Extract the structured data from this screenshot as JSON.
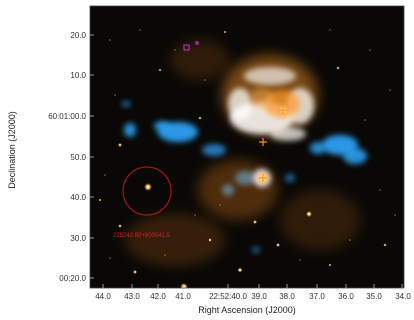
{
  "figure": {
    "xlabel": "Right Ascension (J2000)",
    "ylabel": "Declination (J2000)",
    "x_ticks": [
      "44.0",
      "43.0",
      "42.0",
      "41.0",
      "22:52:40.0",
      "39.0",
      "38.0",
      "37.0",
      "36.0",
      "35.0",
      "34.0"
    ],
    "y_ticks": [
      "20.0",
      "10.0",
      "60:01:00.0",
      "50.0",
      "40.0",
      "30.0",
      "00:20.0"
    ],
    "source_label": "225242.60+600041.5",
    "colors": {
      "background": "#000000",
      "frame": "#444444",
      "circle": "#c01818",
      "label": "#d42020",
      "cyan_emission": "#2fa8ff",
      "orange_emission": "#ff9a2a",
      "white_emission": "#ffffff",
      "cross_marker": "#ff8c1a",
      "square_marker": "#cc33cc"
    }
  }
}
